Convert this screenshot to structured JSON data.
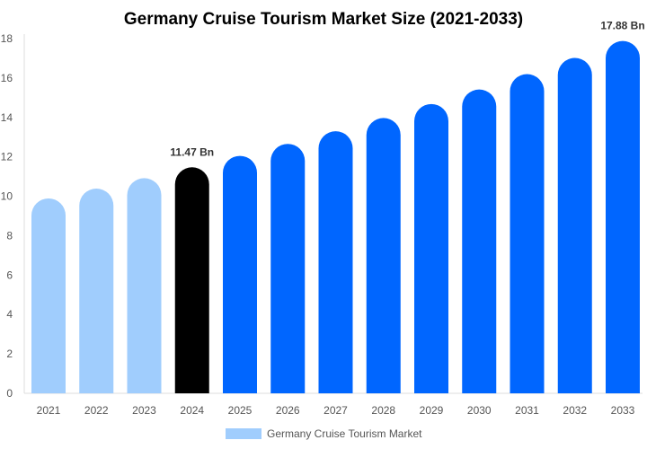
{
  "chart_data": {
    "type": "bar",
    "title": "Germany Cruise Tourism Market Size (2021-2033)",
    "categories": [
      "2021",
      "2022",
      "2023",
      "2024",
      "2025",
      "2026",
      "2027",
      "2028",
      "2029",
      "2030",
      "2031",
      "2032",
      "2033"
    ],
    "series": [
      {
        "name": "Germany Cruise Tourism Market",
        "values": [
          9.89,
          10.39,
          10.92,
          11.47,
          12.05,
          12.66,
          13.3,
          13.97,
          14.68,
          15.42,
          16.2,
          17.02,
          17.88
        ]
      }
    ],
    "data_labels": {
      "3": "11.47 Bn",
      "12": "17.88 Bn"
    },
    "yticks": [
      0,
      2,
      4,
      6,
      8,
      10,
      12,
      14,
      16,
      18
    ],
    "ylim": [
      0,
      18
    ],
    "xlabel": "",
    "ylabel": "",
    "grid": false,
    "legend_position": "bottom",
    "colors": {
      "historical": "#a0cdfd",
      "base_year": "#000000",
      "forecast": "#0066ff",
      "legend_swatch": "#a0cdfd"
    }
  }
}
